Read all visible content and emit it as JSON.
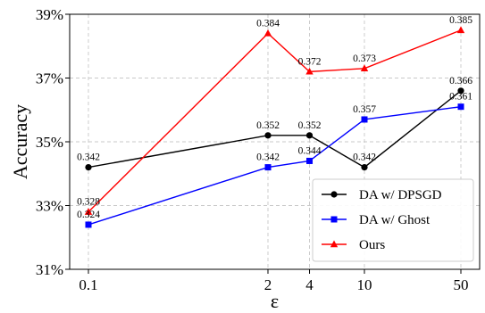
{
  "chart_data": {
    "type": "line",
    "xlabel": "ε",
    "ylabel": "Accuracy",
    "x_scale": "log",
    "x": [
      0.1,
      2,
      4,
      10,
      50
    ],
    "x_tick_labels": [
      "0.1",
      "2",
      "4",
      "10",
      "50"
    ],
    "y_ticks": [
      31,
      33,
      35,
      37,
      39
    ],
    "y_tick_labels": [
      "31%",
      "33%",
      "35%",
      "37%",
      "39%"
    ],
    "ylim": [
      31,
      39
    ],
    "grid": true,
    "legend_position": "lower-right",
    "series": [
      {
        "name": "DA w/ DPSGD",
        "color": "#000000",
        "marker": "circle",
        "values": [
          34.2,
          35.2,
          35.2,
          34.2,
          36.6
        ],
        "labels": [
          "0.342",
          "0.352",
          "0.352",
          "0.342",
          "0.366"
        ]
      },
      {
        "name": "DA w/ Ghost",
        "color": "#0000ff",
        "marker": "square",
        "values": [
          32.4,
          34.2,
          34.4,
          35.7,
          36.1
        ],
        "labels": [
          "0.324",
          "0.342",
          "0.344",
          "0.357",
          "0.361"
        ]
      },
      {
        "name": "Ours",
        "color": "#ff0000",
        "marker": "triangle",
        "values": [
          32.8,
          38.4,
          37.2,
          37.3,
          38.5
        ],
        "labels": [
          "0.328",
          "0.384",
          "0.372",
          "0.373",
          "0.385"
        ]
      }
    ]
  }
}
